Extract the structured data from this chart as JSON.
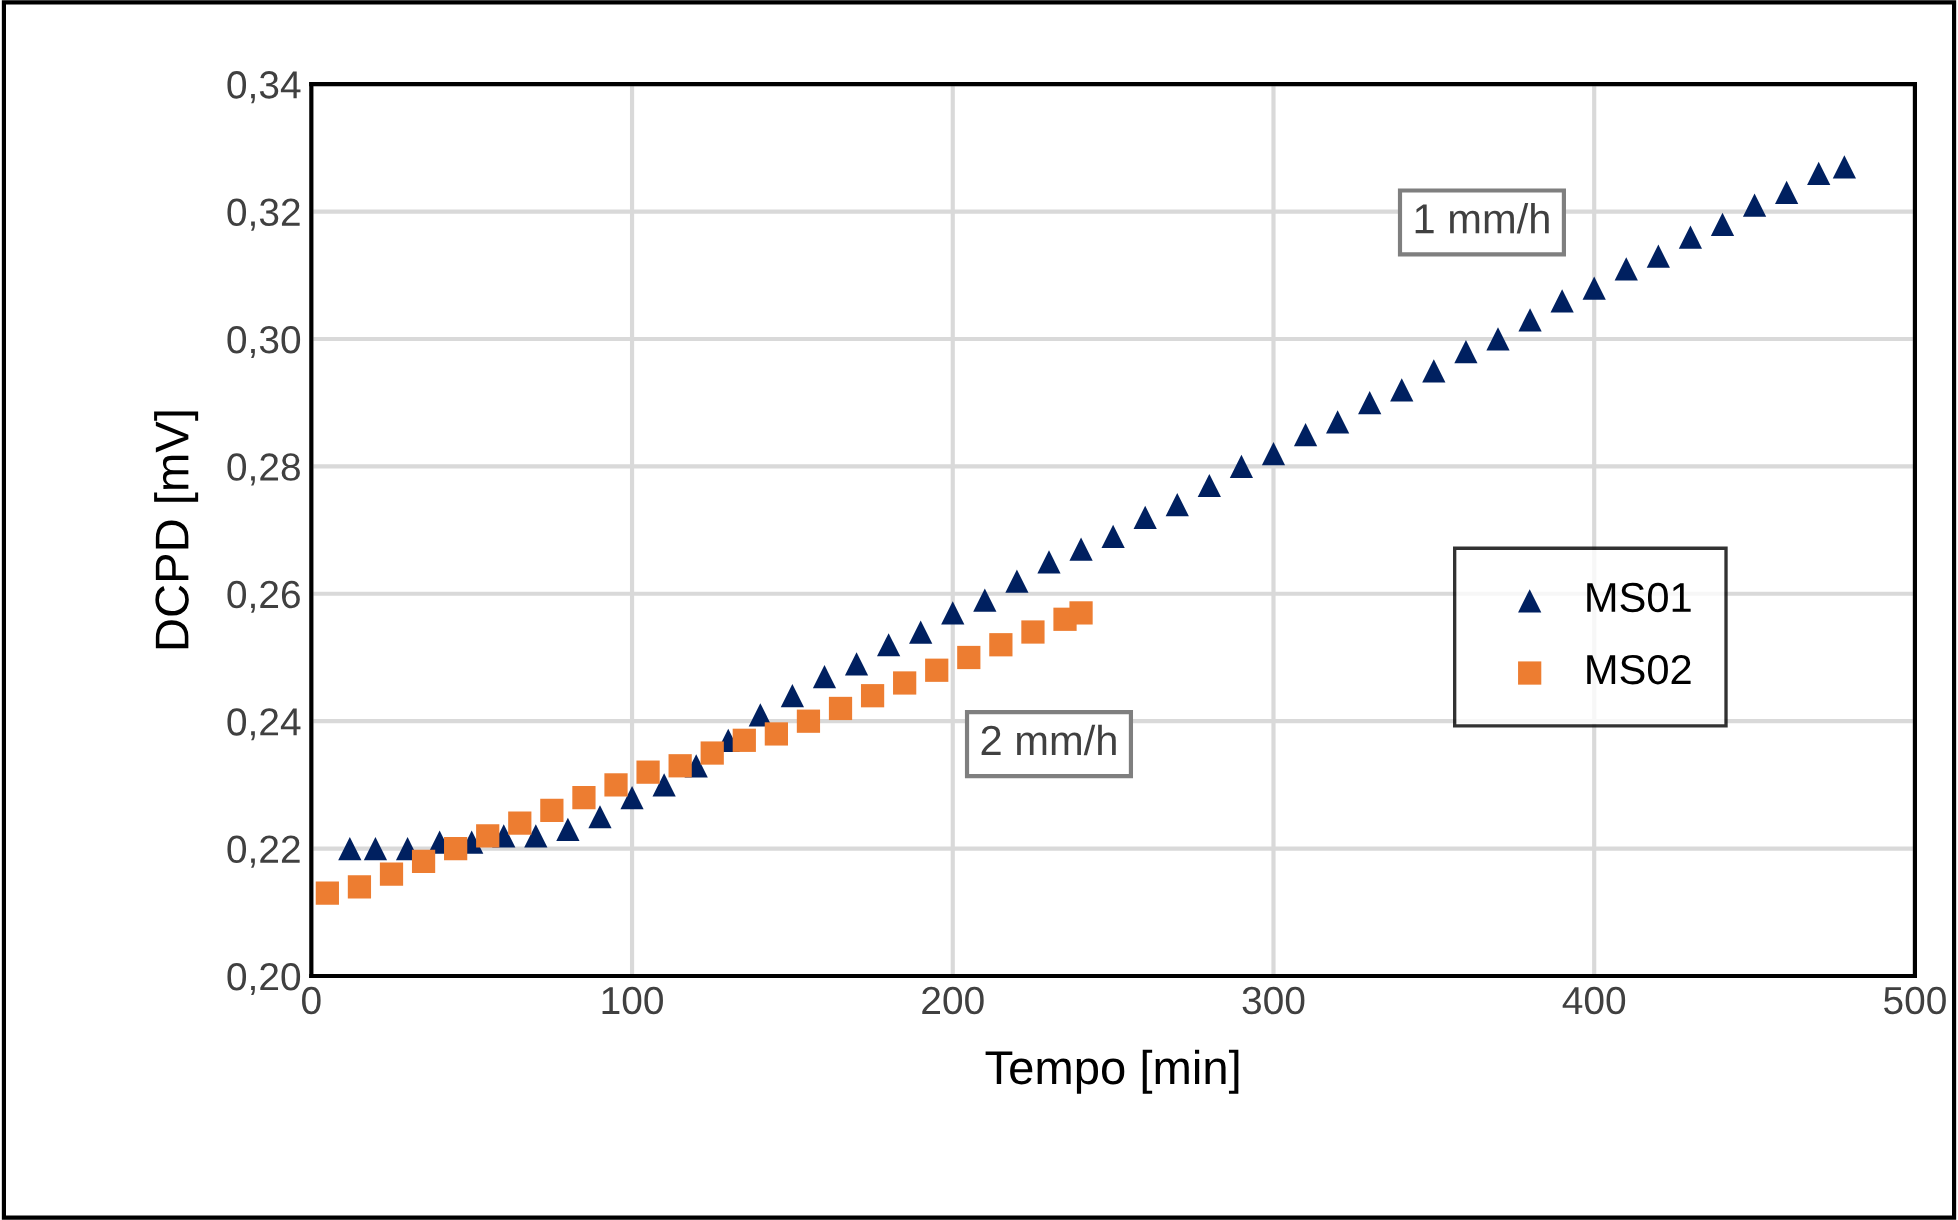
{
  "chart_data": {
    "type": "scatter",
    "xlabel": "Tempo [min]",
    "ylabel": "DCPD [mV]",
    "xlim": [
      0,
      500
    ],
    "xticks": [
      0,
      100,
      200,
      300,
      400,
      500
    ],
    "ylim": [
      0.2,
      0.34
    ],
    "yticks": [
      {
        "value": 0.2,
        "label": "0,20"
      },
      {
        "value": 0.22,
        "label": "0,22"
      },
      {
        "value": 0.24,
        "label": "0,24"
      },
      {
        "value": 0.26,
        "label": "0,26"
      },
      {
        "value": 0.28,
        "label": "0,28"
      },
      {
        "value": 0.3,
        "label": "0,30"
      },
      {
        "value": 0.32,
        "label": "0,32"
      },
      {
        "value": 0.34,
        "label": "0,34"
      }
    ],
    "grid": true,
    "legend": "right",
    "series": [
      {
        "name": "MS01",
        "color": "#002060",
        "marker": "triangle",
        "x": [
          12,
          20,
          30,
          40,
          50,
          60,
          70,
          80,
          90,
          100,
          110,
          120,
          130,
          140,
          150,
          160,
          170,
          180,
          190,
          200,
          210,
          220,
          230,
          240,
          250,
          260,
          270,
          280,
          290,
          300,
          310,
          320,
          330,
          340,
          350,
          360,
          370,
          380,
          390,
          400,
          410,
          420,
          430,
          440,
          450,
          460,
          470,
          478
        ],
        "values": [
          0.22,
          0.22,
          0.22,
          0.221,
          0.221,
          0.222,
          0.222,
          0.223,
          0.225,
          0.228,
          0.23,
          0.233,
          0.237,
          0.241,
          0.244,
          0.247,
          0.249,
          0.252,
          0.254,
          0.257,
          0.259,
          0.262,
          0.265,
          0.267,
          0.269,
          0.272,
          0.274,
          0.277,
          0.28,
          0.282,
          0.285,
          0.287,
          0.29,
          0.292,
          0.295,
          0.298,
          0.3,
          0.303,
          0.306,
          0.308,
          0.311,
          0.313,
          0.316,
          0.318,
          0.321,
          0.323,
          0.326,
          0.327
        ]
      },
      {
        "name": "MS02",
        "color": "#ed7d31",
        "marker": "square",
        "x": [
          5,
          15,
          25,
          35,
          45,
          55,
          65,
          75,
          85,
          95,
          105,
          115,
          125,
          135,
          145,
          155,
          165,
          175,
          185,
          195,
          205,
          215,
          225,
          235,
          240
        ],
        "values": [
          0.213,
          0.214,
          0.216,
          0.218,
          0.22,
          0.222,
          0.224,
          0.226,
          0.228,
          0.23,
          0.232,
          0.233,
          0.235,
          0.237,
          0.238,
          0.24,
          0.242,
          0.244,
          0.246,
          0.248,
          0.25,
          0.252,
          0.254,
          0.256,
          0.257
        ]
      }
    ],
    "annotations": [
      "1 mm/h",
      "2 mm/h"
    ]
  }
}
